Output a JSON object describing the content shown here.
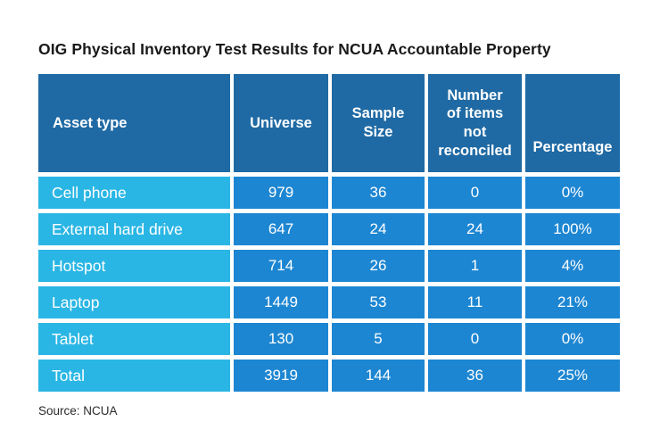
{
  "title": "OIG Physical Inventory Test Results for NCUA Accountable Property",
  "source": "Source: NCUA",
  "table": {
    "headers": [
      "Asset type",
      "Universe",
      "Sample\nSize",
      "Number\nof items\nnot\nreconciled",
      "Percentage"
    ],
    "rows": [
      [
        "Cell phone",
        "979",
        "36",
        "0",
        "0%"
      ],
      [
        "External hard drive",
        "647",
        "24",
        "24",
        "100%"
      ],
      [
        "Hotspot",
        "714",
        "26",
        "1",
        "4%"
      ],
      [
        "Laptop",
        "1449",
        "53",
        "11",
        "21%"
      ],
      [
        "Tablet",
        "130",
        "5",
        "0",
        "0%"
      ],
      [
        "Total",
        "3919",
        "144",
        "36",
        "25%"
      ]
    ]
  },
  "colors": {
    "header_bg": "#1f6aa4",
    "cell_bg": "#1d86d2",
    "label_bg": "#2ab6e4",
    "table_text": "#ffffff",
    "title_text": "#191919",
    "source_text": "#2b2b2b",
    "background": "#ffffff"
  },
  "chart_data": {
    "type": "table",
    "title": "OIG Physical Inventory Test Results for NCUA Accountable Property",
    "columns": [
      "Asset type",
      "Universe",
      "Sample Size",
      "Number of items not reconciled",
      "Percentage"
    ],
    "rows": [
      {
        "asset_type": "Cell phone",
        "universe": 979,
        "sample_size": 36,
        "items_not_reconciled": 0,
        "percentage": "0%"
      },
      {
        "asset_type": "External hard drive",
        "universe": 647,
        "sample_size": 24,
        "items_not_reconciled": 24,
        "percentage": "100%"
      },
      {
        "asset_type": "Hotspot",
        "universe": 714,
        "sample_size": 26,
        "items_not_reconciled": 1,
        "percentage": "4%"
      },
      {
        "asset_type": "Laptop",
        "universe": 1449,
        "sample_size": 53,
        "items_not_reconciled": 11,
        "percentage": "21%"
      },
      {
        "asset_type": "Tablet",
        "universe": 130,
        "sample_size": 5,
        "items_not_reconciled": 0,
        "percentage": "0%"
      },
      {
        "asset_type": "Total",
        "universe": 3919,
        "sample_size": 144,
        "items_not_reconciled": 36,
        "percentage": "25%"
      }
    ],
    "source": "Source: NCUA"
  }
}
